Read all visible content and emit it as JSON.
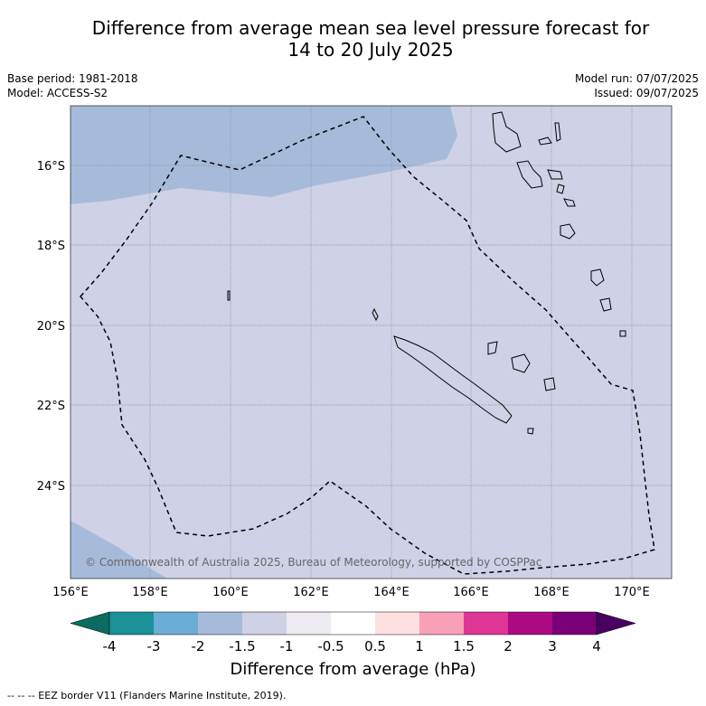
{
  "title_line1": "Difference from average mean sea level pressure forecast for",
  "title_line2": "14 to 20 July 2025",
  "base_period": "Base period: 1981-2018",
  "model": "Model: ACCESS-S2",
  "model_run": "Model run: 07/07/2025",
  "issued": "Issued: 09/07/2025",
  "copyright": "© Commonwealth of Australia 2025, Bureau of Meteorology, supported by COSPPac",
  "lon_labels": [
    "156°E",
    "158°E",
    "160°E",
    "162°E",
    "164°E",
    "166°E",
    "168°E",
    "170°E"
  ],
  "lat_labels": [
    "16°S",
    "18°S",
    "20°S",
    "22°S",
    "24°S"
  ],
  "colorbar": {
    "labels": [
      "-4",
      "-3",
      "-2",
      "-1.5",
      "-1",
      "-0.5",
      "0.5",
      "1",
      "1.5",
      "2",
      "3",
      "4"
    ],
    "colors": [
      "#1a9097",
      "#6aaed6",
      "#a6bbd9",
      "#cfd1e6",
      "#eeecf2",
      "#ffffff",
      "#ffe0e0",
      "#f8a0b8",
      "#df3597",
      "#ab0a83",
      "#7a0078"
    ],
    "low_color": "#0c6b60",
    "high_color": "#4a0060",
    "title": "Difference from average (hPa)"
  },
  "legend_footnote": "--  --  -- EEZ border V11 (Flanders Marine Institute, 2019).",
  "colors": {
    "field_main": "#cfd1e6",
    "field_low": "#a6bbd9",
    "grid": "#8a90a8"
  }
}
